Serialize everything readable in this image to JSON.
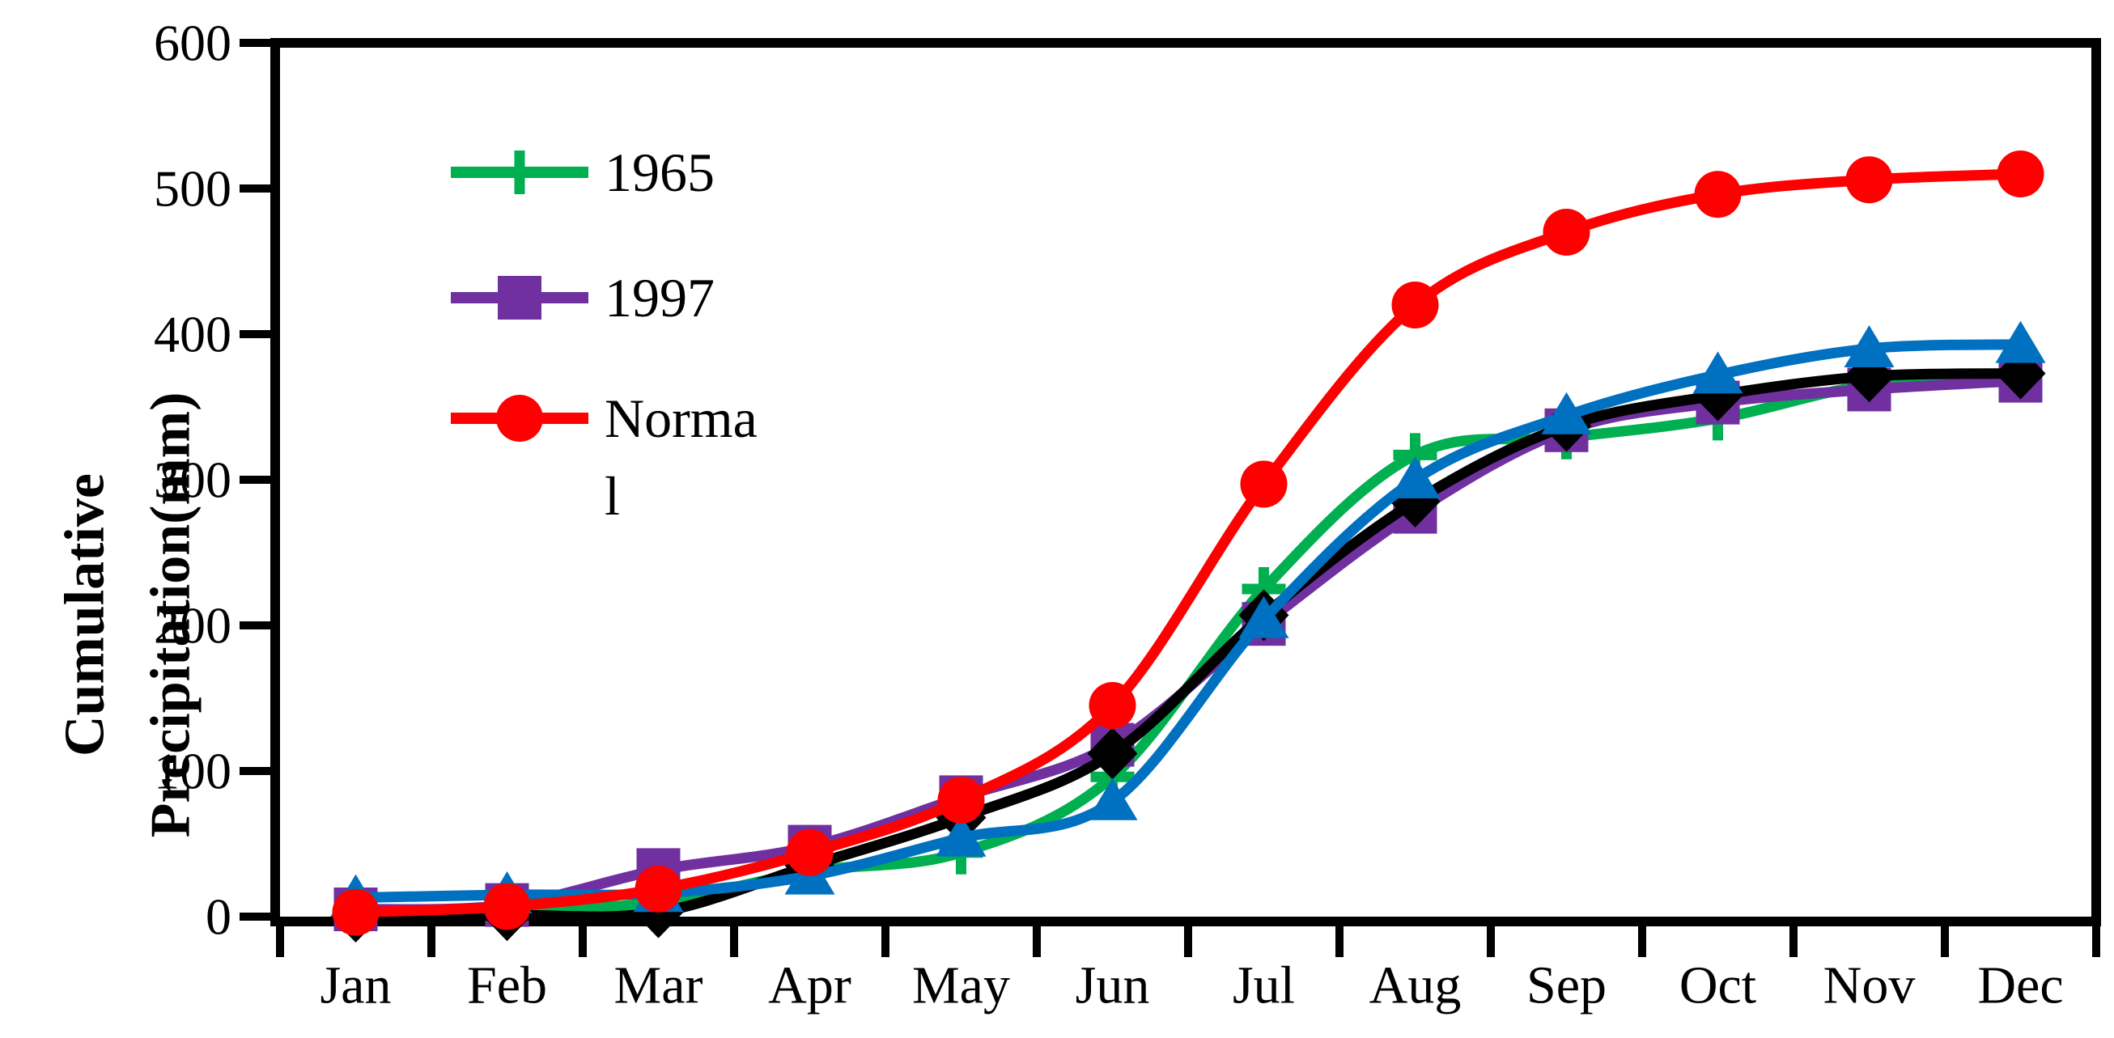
{
  "chart_data": {
    "type": "line",
    "title": "",
    "ylabel_lines": [
      "Cumulative",
      "Precipitation(mm)"
    ],
    "xlabel": "",
    "categories": [
      "Jan",
      "Feb",
      "Mar",
      "Apr",
      "May",
      "Jun",
      "Jul",
      "Aug",
      "Sep",
      "Oct",
      "Nov",
      "Dec"
    ],
    "ylim": [
      0,
      600
    ],
    "yticks": [
      0,
      100,
      200,
      300,
      400,
      500,
      600
    ],
    "grid": "off",
    "legend_position": "upper-left-inside",
    "legend_entries": [
      {
        "label": "1965",
        "wrap": [
          "1965"
        ]
      },
      {
        "label": "1997",
        "wrap": [
          "1997"
        ]
      },
      {
        "label": "Normal",
        "wrap": [
          "Norma",
          "l"
        ]
      }
    ],
    "series": [
      {
        "name": "1965",
        "color": "#00B050",
        "marker": "plus",
        "in_legend": true,
        "values": [
          2,
          4,
          10,
          31,
          44,
          96,
          225,
          317,
          329,
          342,
          365,
          369
        ]
      },
      {
        "name": "1997",
        "color": "#7030A0",
        "marker": "square",
        "in_legend": true,
        "values": [
          5,
          8,
          32,
          48,
          82,
          118,
          201,
          278,
          334,
          353,
          362,
          368
        ]
      },
      {
        "name": "",
        "color": "#000000",
        "marker": "diamond",
        "in_legend": false,
        "values": [
          0,
          1,
          3,
          35,
          68,
          112,
          207,
          285,
          337,
          358,
          371,
          373
        ]
      },
      {
        "name": "",
        "color": "#0070C0",
        "marker": "triangle",
        "in_legend": false,
        "values": [
          13,
          15,
          16,
          28,
          54,
          79,
          204,
          300,
          344,
          372,
          390,
          393
        ]
      },
      {
        "name": "Normal",
        "color": "#FF0000",
        "marker": "circle",
        "in_legend": true,
        "values": [
          3,
          7,
          19,
          44,
          80,
          145,
          297,
          420,
          470,
          496,
          506,
          510
        ]
      }
    ],
    "axis_color": "#000000"
  }
}
